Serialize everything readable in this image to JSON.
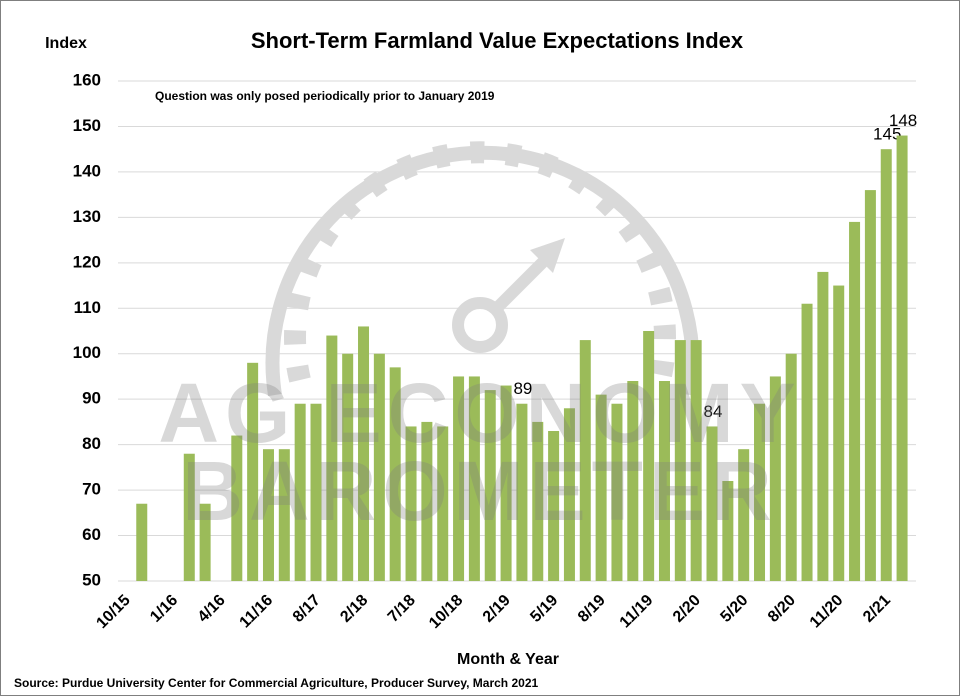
{
  "chart_data": {
    "type": "bar",
    "title": "Short-Term Farmland Value Expectations Index",
    "y_label": "Index",
    "x_label": "Month & Year",
    "note": "Question was only posed periodically prior to January 2019",
    "source": "Source: Purdue University Center for Commercial Agriculture, Producer Survey, March 2021",
    "watermark": [
      "AG ECONOMY",
      "BAROMETER"
    ],
    "categories": [
      "10/15",
      null,
      null,
      "1/16",
      null,
      null,
      "4/16",
      null,
      null,
      "11/16",
      null,
      null,
      "8/17",
      null,
      null,
      "2/18",
      null,
      null,
      "7/18",
      null,
      null,
      "10/18",
      null,
      null,
      "2/19",
      null,
      null,
      "5/19",
      null,
      null,
      "8/19",
      null,
      null,
      "11/19",
      null,
      null,
      "2/20",
      null,
      null,
      "5/20",
      null,
      null,
      "8/20",
      null,
      null,
      "11/20",
      null,
      null,
      "2/21",
      null
    ],
    "values": [
      null,
      67,
      null,
      null,
      78,
      67,
      null,
      82,
      98,
      79,
      79,
      89,
      89,
      104,
      100,
      106,
      100,
      97,
      84,
      85,
      84,
      95,
      95,
      92,
      93,
      89,
      85,
      83,
      88,
      103,
      91,
      89,
      94,
      105,
      94,
      103,
      103,
      84,
      72,
      79,
      89,
      95,
      100,
      111,
      118,
      115,
      129,
      136,
      145,
      148
    ],
    "value_labels": [
      null,
      null,
      null,
      null,
      null,
      null,
      null,
      null,
      null,
      null,
      null,
      null,
      null,
      null,
      null,
      null,
      null,
      null,
      null,
      null,
      null,
      null,
      null,
      null,
      null,
      "89",
      null,
      null,
      null,
      null,
      null,
      null,
      null,
      null,
      null,
      null,
      null,
      "84",
      null,
      null,
      null,
      null,
      null,
      null,
      null,
      null,
      null,
      null,
      "145",
      "148"
    ],
    "color": "#9bbb59",
    "ylim": [
      50,
      160
    ],
    "yticks": [
      50,
      60,
      70,
      80,
      90,
      100,
      110,
      120,
      130,
      140,
      150,
      160
    ],
    "grid": true
  }
}
